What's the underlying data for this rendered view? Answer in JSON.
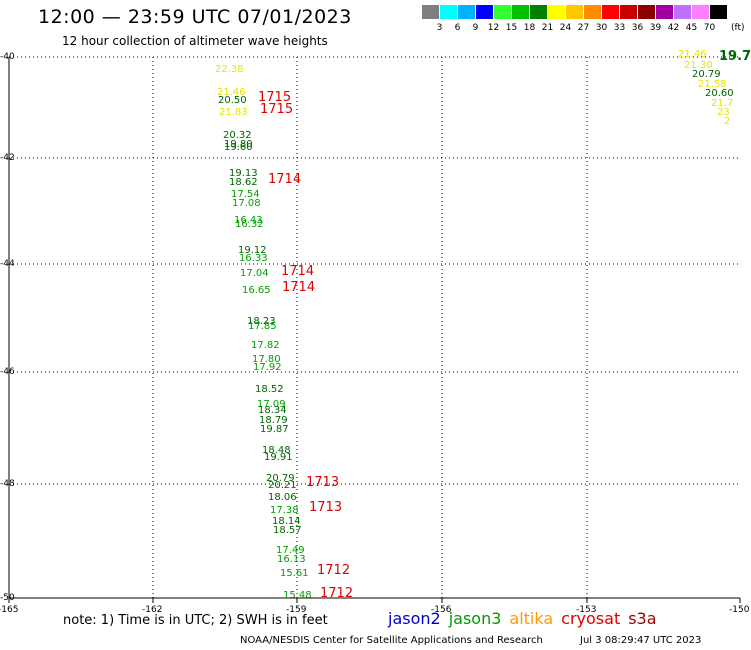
{
  "header": {
    "title": "12:00 — 23:59 UTC 07/01/2023",
    "subtitle": "12 hour collection of altimeter wave heights"
  },
  "scale": {
    "unit": "(ft)",
    "colors": [
      "#808080",
      "#00ffff",
      "#00b3ff",
      "#0000ff",
      "#30ff30",
      "#00c000",
      "#008000",
      "#ffff00",
      "#ffc800",
      "#ff8c00",
      "#ff0000",
      "#c80000",
      "#8b0000",
      "#a000a0",
      "#c070ff",
      "#ff80ff",
      "#000000"
    ],
    "labels": [
      "3",
      "6",
      "9",
      "12",
      "15",
      "18",
      "21",
      "24",
      "27",
      "30",
      "33",
      "36",
      "39",
      "42",
      "45",
      "70"
    ]
  },
  "map": {
    "lat_labels": [
      "-40",
      "-42",
      "-44",
      "-46",
      "-48",
      "-50"
    ],
    "lon_labels": [
      "-165",
      "-162",
      "-159",
      "-156",
      "-153",
      "-150"
    ],
    "main_track": [
      {
        "v": "22.38",
        "c": "#e5e500"
      },
      {
        "v": "21.46",
        "c": "#e5e500"
      },
      {
        "v": "20.50",
        "c": "#006400"
      },
      {
        "v": "21.83",
        "c": "#e5e500"
      },
      {
        "v": "20.32",
        "c": "#006400"
      },
      {
        "v": "19.80",
        "c": "#006400"
      },
      {
        "v": "19.60",
        "c": "#006400"
      },
      {
        "v": "19.13",
        "c": "#006400"
      },
      {
        "v": "18.62",
        "c": "#006400"
      },
      {
        "v": "17.54",
        "c": "#00a000"
      },
      {
        "v": "17.08",
        "c": "#00a000"
      },
      {
        "v": "16.43",
        "c": "#00a000"
      },
      {
        "v": "16.32",
        "c": "#00a000"
      },
      {
        "v": "19.12",
        "c": "#006400"
      },
      {
        "v": "16.33",
        "c": "#00a000"
      },
      {
        "v": "17.04",
        "c": "#00a000"
      },
      {
        "v": "16.65",
        "c": "#00a000"
      },
      {
        "v": "18.23",
        "c": "#006400"
      },
      {
        "v": "17.85",
        "c": "#00a000"
      },
      {
        "v": "17.82",
        "c": "#00a000"
      },
      {
        "v": "17.80",
        "c": "#00a000"
      },
      {
        "v": "17.92",
        "c": "#00a000"
      },
      {
        "v": "18.52",
        "c": "#006400"
      },
      {
        "v": "17.09",
        "c": "#00a000"
      },
      {
        "v": "18.34",
        "c": "#006400"
      },
      {
        "v": "18.79",
        "c": "#006400"
      },
      {
        "v": "19.87",
        "c": "#006400"
      },
      {
        "v": "18.48",
        "c": "#006400"
      },
      {
        "v": "19.91",
        "c": "#006400"
      },
      {
        "v": "20.79",
        "c": "#006400"
      },
      {
        "v": "20.21",
        "c": "#006400"
      },
      {
        "v": "18.06",
        "c": "#006400"
      },
      {
        "v": "17.38",
        "c": "#00a000"
      },
      {
        "v": "18.14",
        "c": "#006400"
      },
      {
        "v": "18.57",
        "c": "#006400"
      },
      {
        "v": "17.49",
        "c": "#00a000"
      },
      {
        "v": "16.13",
        "c": "#00a000"
      },
      {
        "v": "15.61",
        "c": "#00a000"
      },
      {
        "v": "15.48",
        "c": "#00a000"
      }
    ],
    "pass_labels": [
      "1715",
      "1715",
      "1714",
      "1714",
      "1714",
      "1713",
      "1713",
      "1712",
      "1712"
    ],
    "side_track": [
      {
        "v": "21.46",
        "c": "#e5e500"
      },
      {
        "v": "19.7",
        "c": "#006400"
      },
      {
        "v": "21.30",
        "c": "#e5e500"
      },
      {
        "v": "20.79",
        "c": "#006400"
      },
      {
        "v": "21.58",
        "c": "#e5e500"
      },
      {
        "v": "20.60",
        "c": "#006400"
      },
      {
        "v": "21.7",
        "c": "#e5e500"
      },
      {
        "v": "23",
        "c": "#e5e500"
      },
      {
        "v": "2",
        "c": "#e5e500"
      }
    ]
  },
  "footer": {
    "note": "note: 1) Time is in UTC; 2) SWH is in feet",
    "satellites": [
      {
        "name": "jason2",
        "color": "#0000cc"
      },
      {
        "name": "jason3",
        "color": "#009900"
      },
      {
        "name": "altika",
        "color": "#ff9900"
      },
      {
        "name": "cryosat",
        "color": "#dd0000"
      },
      {
        "name": "s3a",
        "color": "#990000"
      }
    ],
    "credit": "NOAA/NESDIS Center for Satellite Applications and Research",
    "created": "Jul  3 08:29:47 UTC 2023"
  }
}
